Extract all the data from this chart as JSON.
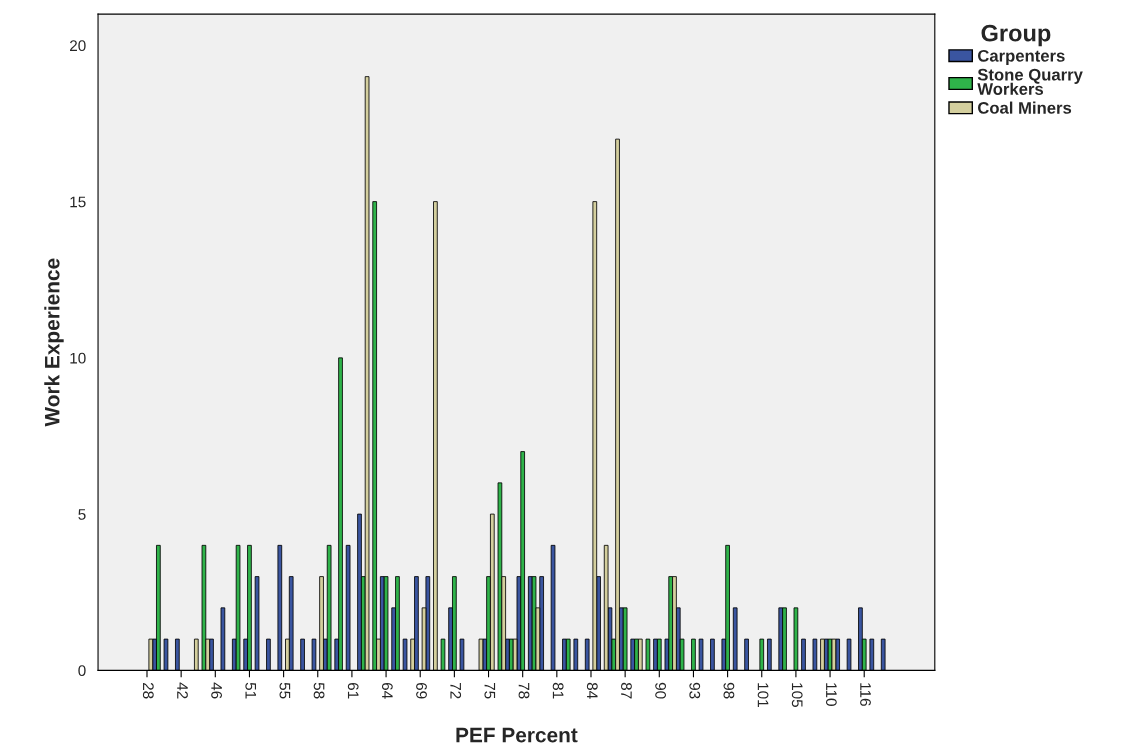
{
  "chart_data": {
    "type": "bar",
    "xlabel": "PEF Percent",
    "ylabel": "Work Experience",
    "legend_title": "Group",
    "legend": "right",
    "grid": false,
    "categories": [
      "28",
      null,
      null,
      "42",
      null,
      null,
      "46",
      null,
      null,
      "51",
      null,
      null,
      "55",
      null,
      null,
      "58",
      null,
      null,
      "61",
      null,
      null,
      "64",
      null,
      null,
      "69",
      null,
      null,
      "72",
      null,
      null,
      "75",
      null,
      null,
      "78",
      null,
      null,
      "81",
      null,
      null,
      "84",
      null,
      null,
      "87",
      null,
      null,
      "90",
      null,
      null,
      "93",
      null,
      null,
      "98",
      null,
      null,
      "101",
      null,
      null,
      "105",
      null,
      null,
      "110",
      null,
      null,
      "116",
      null,
      null
    ],
    "ylim": [
      0,
      21
    ],
    "yticks": [
      0,
      5,
      10,
      15,
      20
    ],
    "series": [
      {
        "name": "Carpenters",
        "color": "#3a55a0",
        "values": [
          null,
          1,
          1,
          1,
          null,
          null,
          1,
          2,
          1,
          1,
          3,
          1,
          4,
          3,
          1,
          1,
          1,
          1,
          4,
          5,
          null,
          3,
          2,
          1,
          3,
          3,
          null,
          2,
          1,
          null,
          1,
          null,
          1,
          3,
          3,
          3,
          4,
          1,
          1,
          1,
          3,
          2,
          2,
          1,
          null,
          1,
          1,
          2,
          null,
          1,
          1,
          1,
          2,
          1,
          null,
          1,
          2,
          null,
          1,
          1,
          1,
          1,
          1,
          2,
          1,
          1
        ]
      },
      {
        "name": "Stone Quarry Workers",
        "color": "#2fb34a",
        "values": [
          null,
          4,
          null,
          null,
          null,
          4,
          null,
          null,
          4,
          4,
          null,
          null,
          null,
          null,
          null,
          null,
          4,
          10,
          null,
          3,
          15,
          3,
          3,
          null,
          null,
          null,
          1,
          3,
          null,
          null,
          3,
          6,
          1,
          7,
          3,
          null,
          null,
          1,
          null,
          null,
          null,
          1,
          2,
          1,
          1,
          1,
          3,
          1,
          1,
          null,
          null,
          4,
          null,
          null,
          1,
          null,
          2,
          2,
          null,
          null,
          1,
          null,
          null,
          1,
          null,
          null
        ]
      },
      {
        "name": "Coal Miners",
        "color": "#d4cf9e",
        "values": [
          1,
          null,
          null,
          null,
          1,
          1,
          null,
          null,
          null,
          null,
          null,
          null,
          1,
          null,
          null,
          3,
          null,
          null,
          null,
          19,
          1,
          null,
          null,
          1,
          2,
          15,
          null,
          null,
          null,
          1,
          5,
          3,
          1,
          null,
          2,
          null,
          null,
          null,
          null,
          15,
          4,
          17,
          null,
          1,
          null,
          null,
          3,
          null,
          null,
          null,
          null,
          null,
          null,
          null,
          null,
          null,
          null,
          null,
          null,
          1,
          1,
          null,
          null,
          null,
          null,
          null
        ]
      }
    ]
  }
}
